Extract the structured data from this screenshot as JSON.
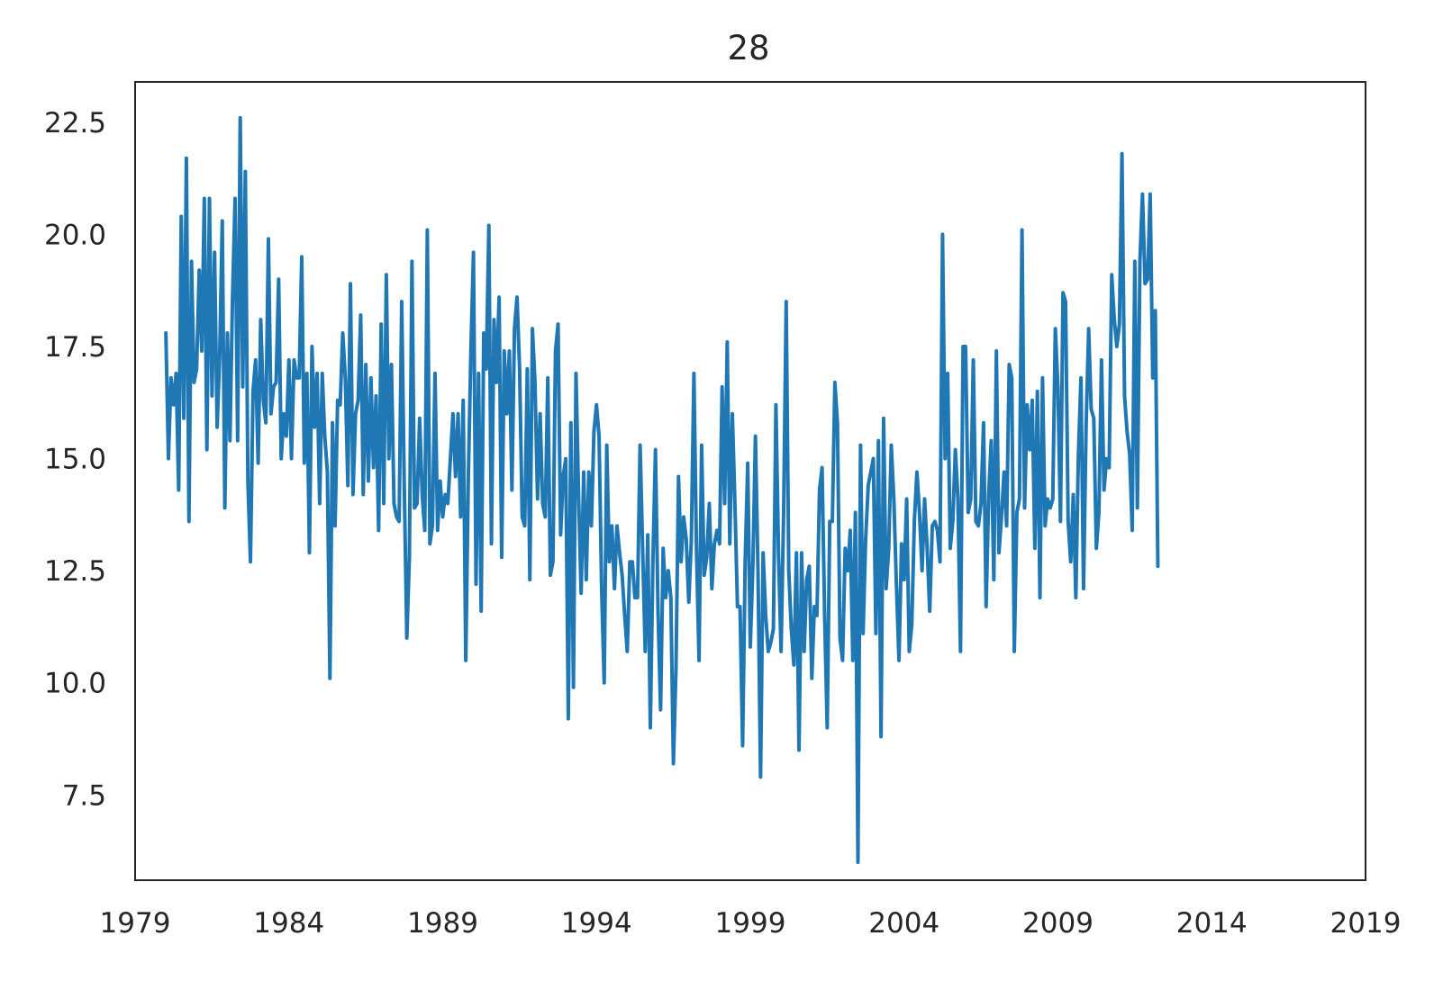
{
  "chart_data": {
    "type": "line",
    "title": "28",
    "xlabel": "",
    "ylabel": "",
    "xlim": [
      1979,
      2019
    ],
    "ylim": [
      5.6,
      23.4
    ],
    "grid": false,
    "legend": "none",
    "x_ticks": [
      "1979",
      "1984",
      "1989",
      "1994",
      "1999",
      "2004",
      "2009",
      "2014",
      "2019"
    ],
    "y_ticks": [
      "7.5",
      "10.0",
      "12.5",
      "15.0",
      "17.5",
      "20.0",
      "22.5"
    ],
    "colors": {
      "line": "#1f77b4",
      "axes": "#262626",
      "background": "#ffffff"
    },
    "series": [
      {
        "x_start": 1980.0,
        "x_step": 0.08333,
        "values": [
          17.8,
          15.0,
          16.8,
          16.2,
          16.9,
          14.3,
          20.4,
          15.9,
          21.7,
          13.6,
          19.4,
          16.7,
          17.0,
          19.2,
          17.4,
          20.8,
          15.2,
          20.8,
          16.4,
          19.6,
          15.7,
          17.3,
          20.3,
          13.9,
          17.8,
          15.4,
          18.6,
          20.8,
          15.4,
          22.6,
          16.6,
          21.4,
          14.5,
          12.7,
          16.5,
          17.2,
          14.9,
          18.1,
          16.3,
          15.8,
          19.9,
          16.0,
          16.6,
          16.7,
          19.0,
          15.0,
          16.0,
          15.5,
          17.2,
          15.0,
          17.2,
          16.8,
          16.8,
          19.5,
          14.9,
          16.9,
          12.9,
          17.5,
          15.7,
          16.9,
          14.0,
          16.9,
          15.5,
          14.7,
          10.1,
          15.8,
          13.5,
          16.3,
          16.2,
          17.8,
          16.8,
          14.4,
          18.9,
          14.2,
          16.0,
          16.3,
          18.2,
          14.2,
          17.1,
          14.5,
          16.8,
          14.8,
          16.4,
          13.4,
          18.0,
          14.0,
          19.1,
          15.0,
          17.1,
          14.0,
          13.7,
          13.6,
          18.5,
          14.4,
          11.0,
          12.8,
          19.4,
          13.9,
          14.0,
          15.9,
          14.2,
          13.4,
          20.1,
          13.1,
          13.5,
          16.9,
          13.4,
          14.5,
          13.7,
          14.2,
          14.0,
          15.0,
          16.0,
          14.6,
          16.0,
          13.7,
          16.3,
          10.5,
          14.6,
          17.4,
          19.6,
          12.2,
          16.9,
          11.6,
          17.8,
          17.0,
          20.2,
          13.1,
          18.1,
          16.7,
          18.6,
          12.8,
          17.4,
          16.0,
          17.4,
          14.3,
          17.9,
          18.6,
          17.0,
          13.7,
          13.5,
          17.0,
          12.3,
          17.9,
          16.7,
          14.1,
          16.0,
          14.0,
          13.7,
          16.8,
          12.4,
          12.7,
          17.4,
          18.0,
          13.3,
          14.6,
          15.0,
          9.2,
          15.8,
          9.9,
          16.9,
          14.2,
          12.0,
          14.7,
          12.3,
          14.7,
          13.5,
          15.6,
          16.2,
          15.5,
          12.1,
          10.0,
          15.3,
          12.7,
          13.5,
          12.1,
          13.5,
          12.9,
          12.4,
          11.5,
          10.7,
          12.7,
          12.7,
          11.9,
          11.9,
          15.3,
          13.0,
          10.7,
          13.3,
          9.0,
          12.7,
          15.2,
          11.6,
          9.4,
          13.0,
          11.9,
          12.5,
          11.9,
          8.2,
          10.3,
          14.6,
          12.7,
          13.7,
          13.2,
          11.8,
          13.2,
          16.9,
          13.0,
          10.5,
          15.3,
          12.4,
          12.8,
          14.0,
          12.1,
          13.1,
          13.4,
          13.1,
          16.6,
          14.0,
          17.6,
          13.1,
          16.0,
          14.0,
          11.7,
          11.7,
          8.6,
          12.7,
          14.9,
          10.8,
          12.6,
          15.5,
          12.5,
          7.9,
          12.9,
          11.5,
          10.7,
          10.9,
          11.2,
          16.2,
          12.9,
          10.7,
          13.8,
          18.5,
          12.5,
          11.2,
          10.4,
          12.9,
          8.5,
          12.9,
          10.7,
          12.3,
          12.6,
          10.1,
          11.7,
          11.5,
          14.3,
          14.8,
          11.5,
          9.0,
          13.6,
          13.6,
          16.7,
          15.8,
          11.0,
          10.5,
          13.0,
          12.5,
          13.4,
          10.5,
          13.8,
          6.0,
          15.3,
          11.1,
          13.2,
          14.4,
          14.7,
          15.0,
          11.1,
          15.4,
          8.8,
          15.9,
          12.1,
          13.0,
          15.3,
          14.1,
          12.2,
          10.5,
          13.1,
          12.3,
          14.1,
          10.7,
          11.3,
          13.6,
          14.7,
          13.8,
          12.5,
          14.1,
          13.0,
          11.6,
          13.5,
          13.6,
          13.4,
          12.7,
          20.0,
          15.0,
          16.9,
          13.0,
          13.6,
          15.2,
          14.1,
          10.7,
          17.5,
          17.5,
          13.8,
          14.1,
          17.2,
          13.6,
          13.5,
          14.0,
          15.8,
          11.7,
          14.2,
          15.4,
          12.3,
          17.4,
          12.9,
          13.7,
          14.7,
          13.5,
          17.1,
          16.8,
          10.7,
          13.8,
          14.1,
          20.1,
          13.9,
          16.2,
          15.2,
          16.3,
          13.0,
          16.5,
          11.9,
          16.8,
          13.5,
          14.1,
          13.9,
          14.1,
          17.9,
          16.6,
          13.6,
          18.7,
          18.5,
          13.6,
          12.7,
          14.2,
          11.9,
          15.1,
          16.8,
          12.1,
          15.7,
          17.9,
          16.1,
          15.9,
          13.0,
          13.8,
          17.2,
          14.3,
          15.0,
          14.8,
          19.1,
          18.1,
          17.5,
          18.0,
          21.8,
          16.4,
          15.6,
          15.1,
          13.4,
          19.4,
          13.9,
          19.4,
          20.9,
          18.9,
          19.0,
          20.9,
          16.8,
          18.3,
          12.6
        ]
      }
    ]
  }
}
